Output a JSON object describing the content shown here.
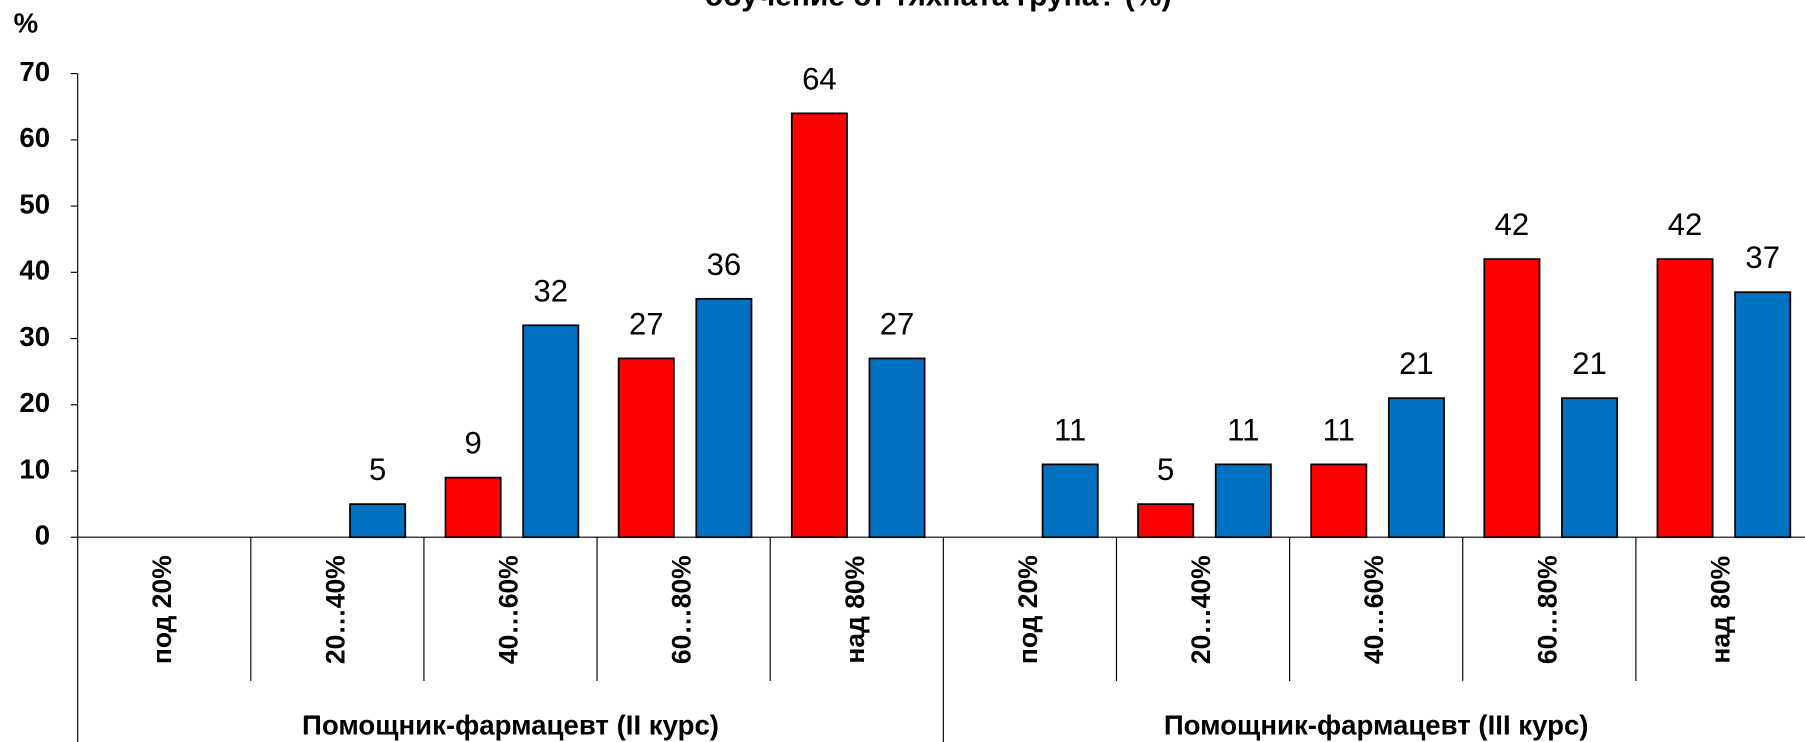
{
  "chart_data": {
    "type": "bar",
    "title": "обучение от тяхната група? (%)",
    "ylabel": "%",
    "groups": [
      {
        "name": "Помощник-фармацевт (II курс)",
        "categories": [
          "под 20%",
          "20…40%",
          "40…60%",
          "60…80%",
          "над 80%"
        ]
      },
      {
        "name": "Помощник-фармацевт (III курс)",
        "categories": [
          "под 20%",
          "20…40%",
          "40…60%",
          "60…80%",
          "над 80%"
        ]
      }
    ],
    "series": [
      {
        "color": "#ff0000",
        "values": [
          null,
          null,
          9,
          27,
          64,
          null,
          5,
          11,
          42,
          42
        ]
      },
      {
        "color": "#0070c0",
        "values": [
          null,
          5,
          32,
          36,
          27,
          11,
          11,
          21,
          21,
          37
        ]
      }
    ],
    "ylim": [
      0,
      70
    ],
    "yticks": [
      0,
      10,
      20,
      30,
      40,
      50,
      60,
      70
    ]
  }
}
